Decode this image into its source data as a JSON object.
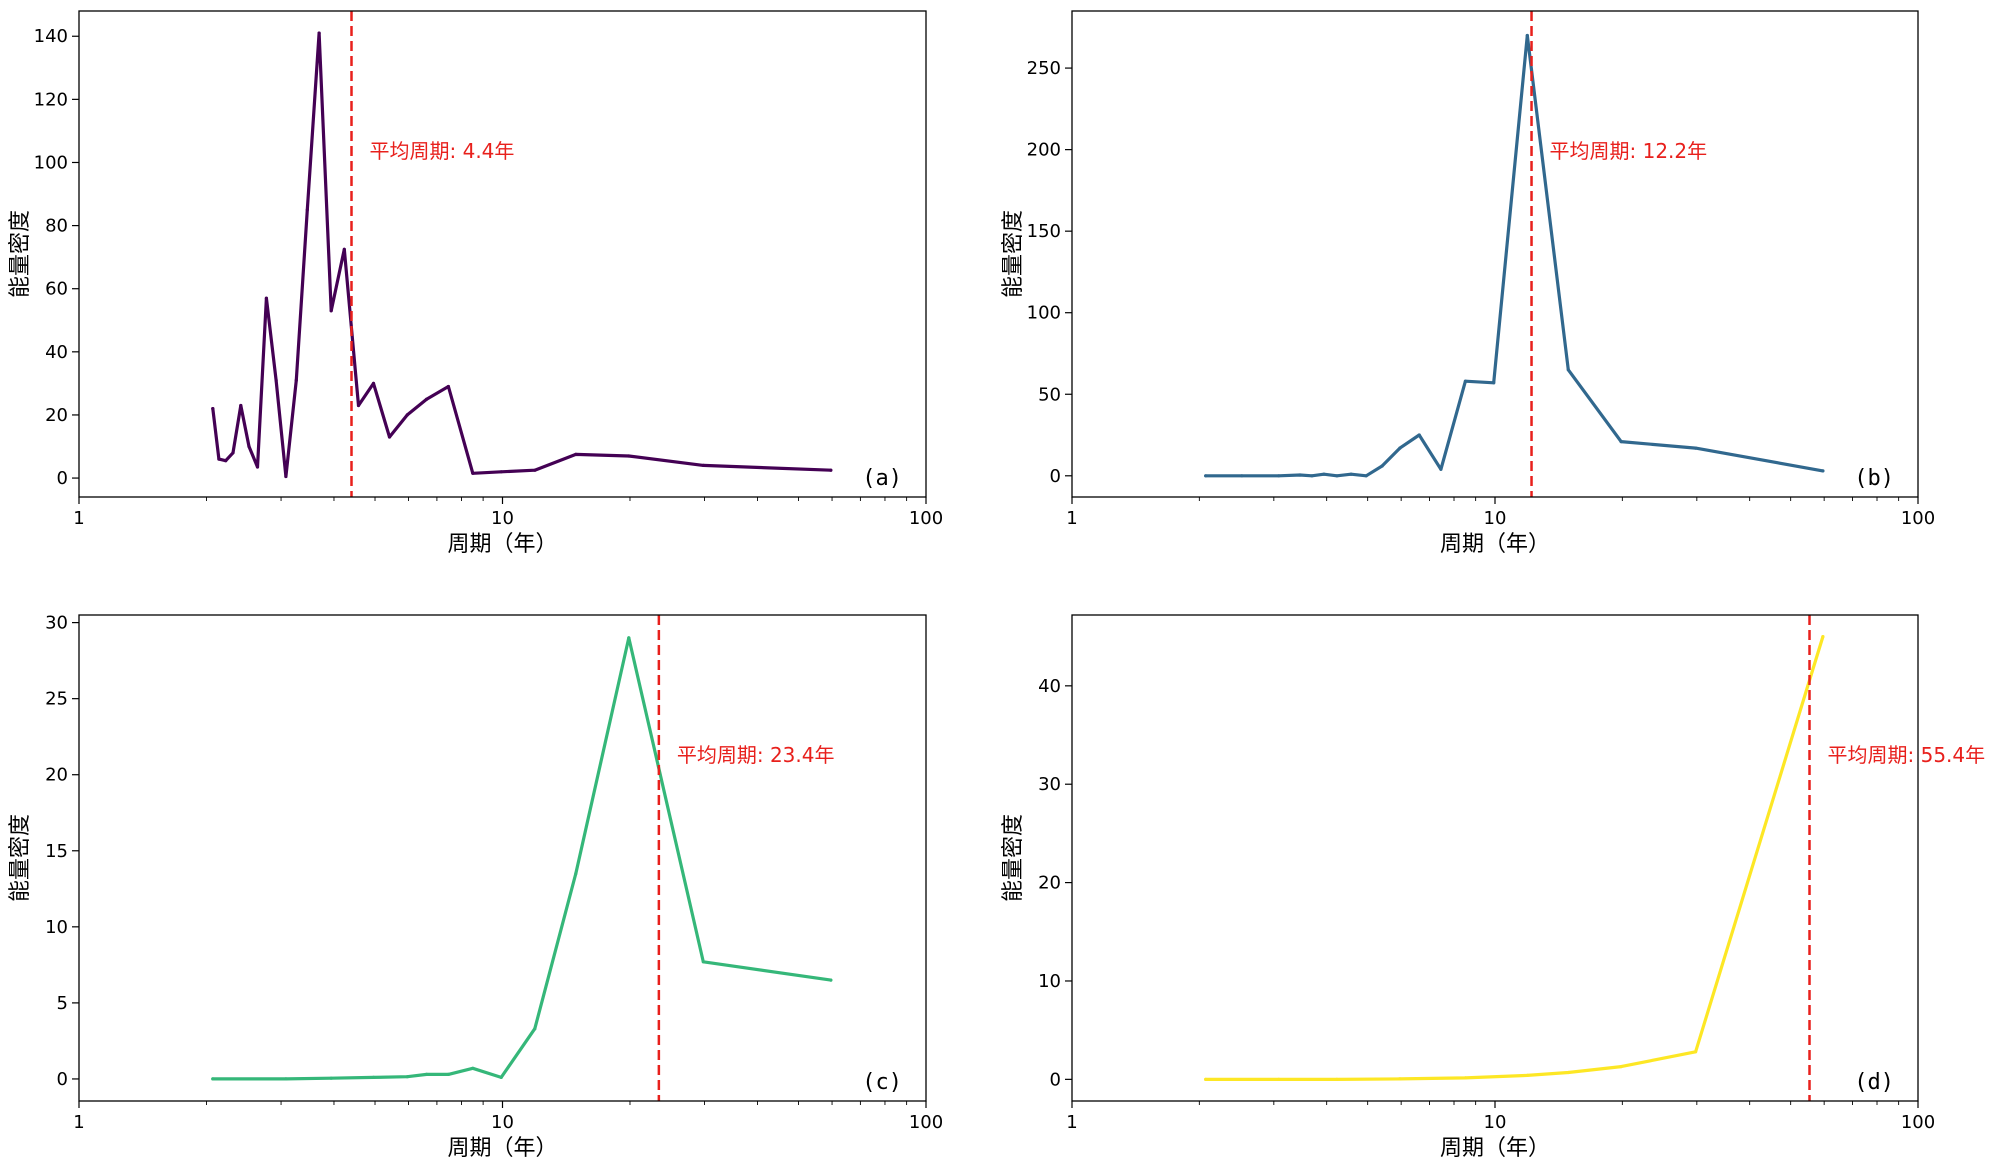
{
  "chart_data": [
    {
      "type": "line",
      "panel_label": "(a)",
      "xlabel": "周期（年）",
      "ylabel": "能量密度",
      "xscale": "log",
      "xlim": [
        1,
        100
      ],
      "ylim": [
        -6,
        148
      ],
      "xticks": [
        1,
        10,
        100
      ],
      "xtick_labels": [
        "1",
        "10",
        "100"
      ],
      "yticks": [
        0,
        20,
        40,
        60,
        80,
        100,
        120,
        140
      ],
      "ytick_labels": [
        "0",
        "20",
        "40",
        "60",
        "80",
        "100",
        "120",
        "140"
      ],
      "color": "#440154",
      "x": [
        2.07,
        2.14,
        2.22,
        2.31,
        2.41,
        2.52,
        2.64,
        2.77,
        2.92,
        3.08,
        3.26,
        3.46,
        3.69,
        3.94,
        4.23,
        4.57,
        4.96,
        5.41,
        5.96,
        6.62,
        7.45,
        8.51,
        9.93,
        11.92,
        14.9,
        19.87,
        29.8,
        59.6
      ],
      "y": [
        22,
        6,
        5.5,
        8,
        23,
        10,
        3.5,
        57,
        31,
        0.5,
        31,
        85,
        141,
        53,
        72.5,
        23,
        30,
        13,
        20,
        25,
        29,
        1.5,
        2,
        2.5,
        7.5,
        7,
        4,
        2.5
      ],
      "vline_x": 4.4,
      "annotation": "平均周期: 4.4年"
    },
    {
      "type": "line",
      "panel_label": "(b)",
      "xlabel": "周期（年）",
      "ylabel": "能量密度",
      "xscale": "log",
      "xlim": [
        1,
        100
      ],
      "ylim": [
        -13,
        285
      ],
      "xticks": [
        1,
        10,
        100
      ],
      "xtick_labels": [
        "1",
        "10",
        "100"
      ],
      "yticks": [
        0,
        50,
        100,
        150,
        200,
        250
      ],
      "ytick_labels": [
        "0",
        "50",
        "100",
        "150",
        "200",
        "250"
      ],
      "color": "#31688e",
      "x": [
        2.07,
        2.52,
        3.08,
        3.46,
        3.69,
        3.94,
        4.23,
        4.57,
        4.96,
        5.41,
        5.96,
        6.62,
        7.45,
        8.51,
        9.93,
        11.92,
        14.9,
        19.87,
        29.8,
        59.6
      ],
      "y": [
        0,
        0,
        0,
        0.5,
        0,
        1,
        0,
        1,
        0,
        6,
        17,
        25,
        4,
        58,
        57,
        270,
        65,
        21,
        17,
        3
      ],
      "vline_x": 12.2,
      "annotation": "平均周期: 12.2年"
    },
    {
      "type": "line",
      "panel_label": "(c)",
      "xlabel": "周期（年）",
      "ylabel": "能量密度",
      "xscale": "log",
      "xlim": [
        1,
        100
      ],
      "ylim": [
        -1.45,
        30.5
      ],
      "xticks": [
        1,
        10,
        100
      ],
      "xtick_labels": [
        "1",
        "10",
        "100"
      ],
      "yticks": [
        0,
        5,
        10,
        15,
        20,
        25,
        30
      ],
      "ytick_labels": [
        "0",
        "5",
        "10",
        "15",
        "20",
        "25",
        "30"
      ],
      "color": "#35b779",
      "x": [
        2.07,
        3.08,
        3.94,
        4.96,
        5.96,
        6.62,
        7.45,
        8.51,
        9.93,
        11.92,
        14.9,
        19.87,
        29.8,
        59.6
      ],
      "y": [
        0,
        0,
        0.05,
        0.1,
        0.15,
        0.3,
        0.3,
        0.7,
        0.1,
        3.3,
        13.5,
        29,
        7.7,
        6.5
      ],
      "vline_x": 23.4,
      "annotation": "平均周期: 23.4年"
    },
    {
      "type": "line",
      "panel_label": "(d)",
      "xlabel": "周期（年）",
      "ylabel": "能量密度",
      "xscale": "log",
      "xlim": [
        1,
        100
      ],
      "ylim": [
        -2.2,
        47.2
      ],
      "xticks": [
        1,
        10,
        100
      ],
      "xtick_labels": [
        "1",
        "10",
        "100"
      ],
      "yticks": [
        0,
        10,
        20,
        30,
        40
      ],
      "ytick_labels": [
        "0",
        "10",
        "20",
        "30",
        "40"
      ],
      "color": "#fde725",
      "x": [
        2.07,
        3.08,
        4.23,
        5.96,
        8.51,
        11.92,
        14.9,
        19.87,
        29.8,
        59.6
      ],
      "y": [
        0,
        0,
        0,
        0.05,
        0.15,
        0.4,
        0.7,
        1.3,
        2.8,
        45
      ],
      "vline_x": 55.4,
      "annotation": "平均周期: 55.4年"
    }
  ]
}
